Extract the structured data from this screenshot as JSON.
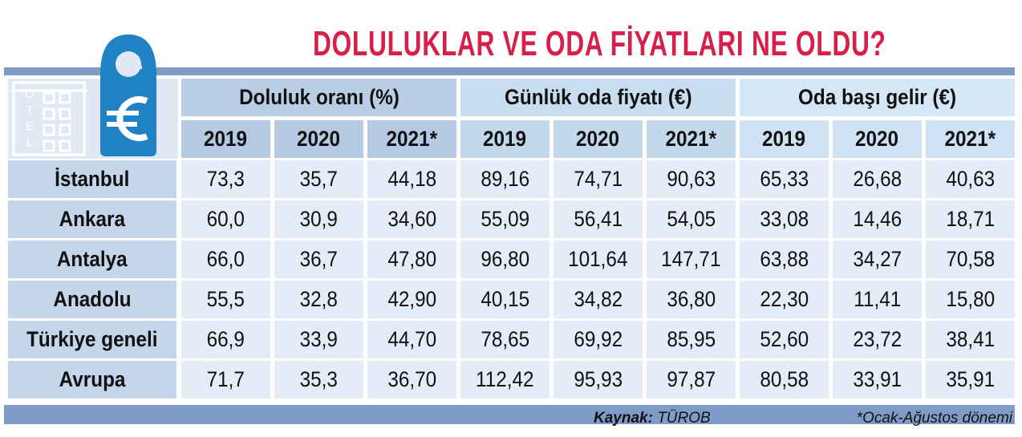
{
  "title": "DOLULUKLAR VE ODA FİYATLARI NE OLDU?",
  "logo": {
    "building_letters": [
      "O",
      "T",
      "E",
      "L"
    ]
  },
  "table": {
    "groups": [
      {
        "name": "Doluluk oranı (%)",
        "years": [
          "2019",
          "2020",
          "2021*"
        ]
      },
      {
        "name": "Günlük oda fiyatı (€)",
        "years": [
          "2019",
          "2020",
          "2021*"
        ]
      },
      {
        "name": "Oda başı gelir (€)",
        "years": [
          "2019",
          "2020",
          "2021*"
        ]
      }
    ],
    "rows": [
      {
        "label": "İstanbul",
        "values": [
          "73,3",
          "35,7",
          "44,18",
          "89,16",
          "74,71",
          "90,63",
          "65,33",
          "26,68",
          "40,63"
        ]
      },
      {
        "label": "Ankara",
        "values": [
          "60,0",
          "30,9",
          "34,60",
          "55,09",
          "56,41",
          "54,05",
          "33,08",
          "14,46",
          "18,71"
        ]
      },
      {
        "label": "Antalya",
        "values": [
          "66,0",
          "36,7",
          "47,80",
          "96,80",
          "101,64",
          "147,71",
          "63,88",
          "34,27",
          "70,58"
        ]
      },
      {
        "label": "Anadolu",
        "values": [
          "55,5",
          "32,8",
          "42,90",
          "40,15",
          "34,82",
          "36,80",
          "22,30",
          "11,41",
          "15,80"
        ]
      },
      {
        "label": "Türkiye geneli",
        "values": [
          "66,9",
          "33,9",
          "44,70",
          "78,65",
          "69,92",
          "85,95",
          "52,60",
          "23,72",
          "38,41"
        ]
      },
      {
        "label": "Avrupa",
        "values": [
          "71,7",
          "35,3",
          "36,70",
          "112,42",
          "95,93",
          "97,87",
          "80,58",
          "33,91",
          "35,91"
        ]
      }
    ]
  },
  "source": {
    "label": "Kaynak:",
    "value": "TÜROB"
  },
  "note": "*Ocak-Ağustos dönemi"
}
